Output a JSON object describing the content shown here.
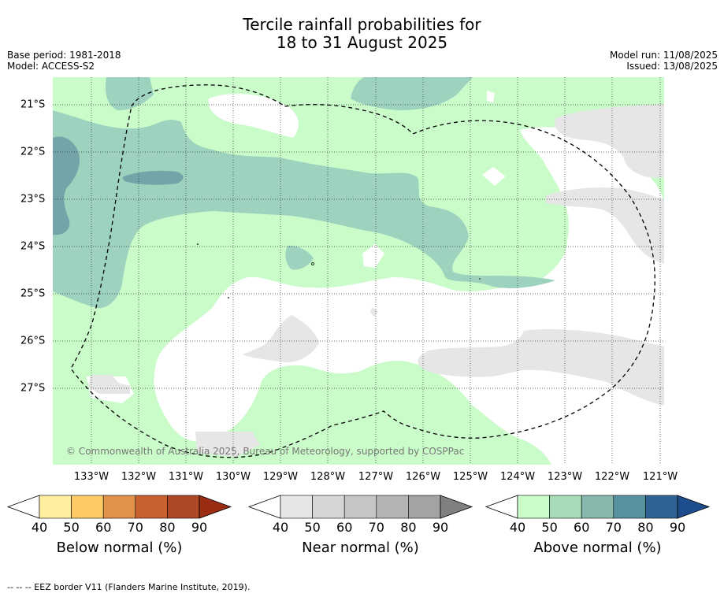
{
  "title": {
    "line1": "Tercile rainfall probabilities for",
    "line2": "18 to 31 August 2025"
  },
  "meta": {
    "base_period": "Base period: 1981-2018",
    "model": "Model: ACCESS-S2",
    "model_run": "Model run: 11/08/2025",
    "issued": "Issued: 13/08/2025"
  },
  "map": {
    "lon_ticks": [
      "133°W",
      "132°W",
      "131°W",
      "130°W",
      "129°W",
      "128°W",
      "127°W",
      "126°W",
      "125°W",
      "124°W",
      "123°W",
      "122°W",
      "121°W"
    ],
    "lat_ticks": [
      "21°S",
      "22°S",
      "23°S",
      "24°S",
      "25°S",
      "26°S",
      "27°S"
    ],
    "copyright": "© Commonwealth of Australia 2025, Bureau of Meteorology, supported by COSPPac"
  },
  "colors": {
    "above_40": "#c9fcc9",
    "above_50": "#9dd2bf",
    "above_60": "#73a5a8",
    "near_40": "#e6e6e6",
    "eez_line": "#000000"
  },
  "colorbars": [
    {
      "label": "Below normal (%)",
      "ticks": [
        "40",
        "50",
        "60",
        "70",
        "80",
        "90"
      ],
      "colors": [
        "#ffeea0",
        "#fdcb66",
        "#e0924a",
        "#c8612f",
        "#ad4726",
        "#9b2c14"
      ]
    },
    {
      "label": "Near normal (%)",
      "ticks": [
        "40",
        "50",
        "60",
        "70",
        "80",
        "90"
      ],
      "colors": [
        "#e6e6e6",
        "#d6d6d6",
        "#c6c6c6",
        "#b4b4b4",
        "#a3a3a3",
        "#808080"
      ]
    },
    {
      "label": "Above normal (%)",
      "ticks": [
        "40",
        "50",
        "60",
        "70",
        "80",
        "90"
      ],
      "colors": [
        "#c9fcc9",
        "#a7dbb7",
        "#86b8ad",
        "#58919e",
        "#306293",
        "#1d4d8c"
      ]
    }
  ],
  "footer": "--  --  -- EEZ border V11 (Flanders Marine Institute, 2019)."
}
